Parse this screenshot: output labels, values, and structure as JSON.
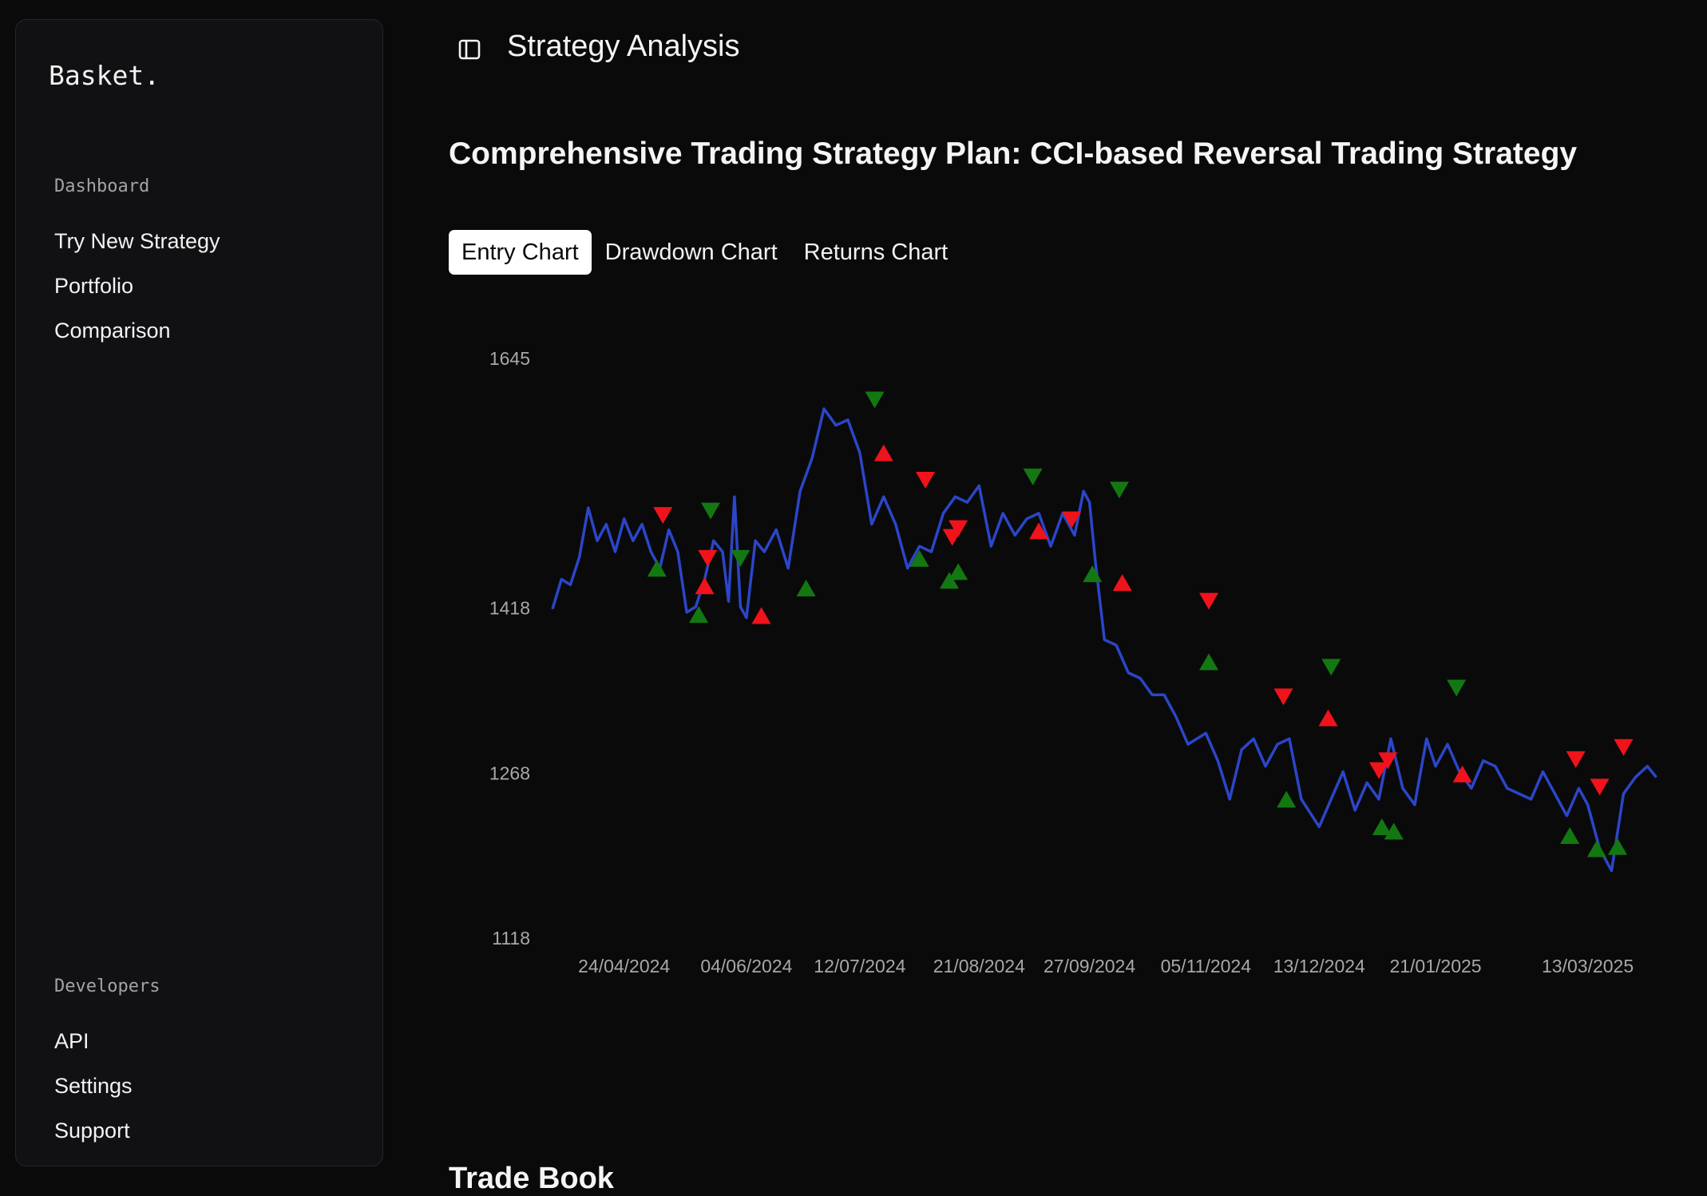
{
  "sidebar": {
    "logo": "Basket.",
    "section_dashboard": "Dashboard",
    "dashboard_items": [
      {
        "label": "Try New Strategy"
      },
      {
        "label": "Portfolio"
      },
      {
        "label": "Comparison"
      }
    ],
    "section_developers": "Developers",
    "developer_items": [
      {
        "label": "API"
      },
      {
        "label": "Settings"
      },
      {
        "label": "Support"
      }
    ]
  },
  "header": {
    "toggle_icon": "sidebar-toggle-icon",
    "title": "Strategy Analysis"
  },
  "main": {
    "heading": "Comprehensive Trading Strategy Plan: CCI-based Reversal Trading Strategy",
    "tabs": [
      {
        "label": "Entry Chart",
        "active": true
      },
      {
        "label": "Drawdown Chart",
        "active": false
      },
      {
        "label": "Returns Chart",
        "active": false
      }
    ],
    "next_section_title": "Trade Book"
  },
  "colors": {
    "line": "#2b46c9",
    "buy": "#137812",
    "sell": "#f0131c",
    "tick_text": "#a8a8a8"
  },
  "chart_data": {
    "type": "line",
    "y_ticks": [
      1645,
      1418,
      1268,
      1118
    ],
    "x_tick_labels": [
      "24/04/2024",
      "04/06/2024",
      "12/07/2024",
      "21/08/2024",
      "27/09/2024",
      "05/11/2024",
      "13/12/2024",
      "21/01/2025",
      "13/03/2025"
    ],
    "x_ticks": [
      "2024-04-24",
      "2024-06-04",
      "2024-07-12",
      "2024-08-21",
      "2024-09-27",
      "2024-11-05",
      "2024-12-13",
      "2025-01-21",
      "2025-03-13"
    ],
    "x_range": [
      "2024-03-31",
      "2025-04-07"
    ],
    "ylim": [
      1118,
      1645
    ],
    "series": [
      {
        "x": [
          "2024-03-31",
          "2024-04-03",
          "2024-04-06",
          "2024-04-09",
          "2024-04-12",
          "2024-04-15",
          "2024-04-18",
          "2024-04-21",
          "2024-04-24",
          "2024-04-27",
          "2024-04-30",
          "2024-05-03",
          "2024-05-06",
          "2024-05-09",
          "2024-05-12",
          "2024-05-15",
          "2024-05-18",
          "2024-05-21",
          "2024-05-24",
          "2024-05-27",
          "2024-05-29",
          "2024-05-31",
          "2024-06-02",
          "2024-06-04",
          "2024-06-07",
          "2024-06-10",
          "2024-06-14",
          "2024-06-18",
          "2024-06-22",
          "2024-06-26",
          "2024-06-30",
          "2024-07-04",
          "2024-07-08",
          "2024-07-12",
          "2024-07-16",
          "2024-07-20",
          "2024-07-24",
          "2024-07-28",
          "2024-08-01",
          "2024-08-05",
          "2024-08-09",
          "2024-08-13",
          "2024-08-17",
          "2024-08-21",
          "2024-08-25",
          "2024-08-29",
          "2024-09-02",
          "2024-09-06",
          "2024-09-10",
          "2024-09-14",
          "2024-09-18",
          "2024-09-22",
          "2024-09-25",
          "2024-09-27",
          "2024-09-29",
          "2024-10-02",
          "2024-10-06",
          "2024-10-10",
          "2024-10-14",
          "2024-10-18",
          "2024-10-22",
          "2024-10-26",
          "2024-10-30",
          "2024-11-05",
          "2024-11-09",
          "2024-11-13",
          "2024-11-17",
          "2024-11-21",
          "2024-11-25",
          "2024-11-29",
          "2024-12-03",
          "2024-12-07",
          "2024-12-13",
          "2024-12-17",
          "2024-12-21",
          "2024-12-25",
          "2024-12-29",
          "2025-01-02",
          "2025-01-06",
          "2025-01-10",
          "2025-01-14",
          "2025-01-18",
          "2025-01-21",
          "2025-01-25",
          "2025-01-29",
          "2025-02-02",
          "2025-02-06",
          "2025-02-10",
          "2025-02-14",
          "2025-02-18",
          "2025-02-22",
          "2025-02-26",
          "2025-03-02",
          "2025-03-06",
          "2025-03-10",
          "2025-03-13",
          "2025-03-17",
          "2025-03-21",
          "2025-03-25",
          "2025-03-29",
          "2025-04-02",
          "2025-04-05"
        ],
        "y": [
          1418,
          1445,
          1440,
          1465,
          1510,
          1480,
          1495,
          1470,
          1500,
          1480,
          1495,
          1470,
          1455,
          1490,
          1470,
          1415,
          1420,
          1445,
          1480,
          1470,
          1425,
          1520,
          1420,
          1410,
          1480,
          1470,
          1490,
          1455,
          1525,
          1555,
          1600,
          1585,
          1590,
          1560,
          1495,
          1520,
          1495,
          1455,
          1475,
          1470,
          1505,
          1520,
          1515,
          1530,
          1475,
          1505,
          1485,
          1500,
          1505,
          1475,
          1505,
          1485,
          1525,
          1515,
          1460,
          1390,
          1385,
          1360,
          1355,
          1340,
          1340,
          1320,
          1295,
          1305,
          1280,
          1245,
          1290,
          1300,
          1275,
          1295,
          1300,
          1245,
          1220,
          1245,
          1270,
          1235,
          1260,
          1245,
          1300,
          1255,
          1240,
          1300,
          1275,
          1295,
          1270,
          1255,
          1280,
          1275,
          1255,
          1250,
          1245,
          1270,
          1250,
          1230,
          1255,
          1240,
          1200,
          1180,
          1250,
          1265,
          1275,
          1265
        ]
      }
    ],
    "markers": {
      "buy_up": [
        {
          "x": "2024-05-05",
          "y": 1455
        },
        {
          "x": "2024-05-19",
          "y": 1413
        },
        {
          "x": "2024-06-24",
          "y": 1437
        },
        {
          "x": "2024-08-01",
          "y": 1464
        },
        {
          "x": "2024-08-11",
          "y": 1444
        },
        {
          "x": "2024-08-14",
          "y": 1452
        },
        {
          "x": "2024-09-28",
          "y": 1450
        },
        {
          "x": "2024-11-06",
          "y": 1370
        },
        {
          "x": "2024-12-02",
          "y": 1245
        },
        {
          "x": "2025-01-03",
          "y": 1220
        },
        {
          "x": "2025-01-07",
          "y": 1216
        },
        {
          "x": "2025-03-07",
          "y": 1212
        },
        {
          "x": "2025-03-16",
          "y": 1200
        },
        {
          "x": "2025-03-23",
          "y": 1202
        }
      ],
      "buy_down": [
        {
          "x": "2024-05-23",
          "y": 1507
        },
        {
          "x": "2024-06-02",
          "y": 1464
        },
        {
          "x": "2024-07-17",
          "y": 1608
        },
        {
          "x": "2024-09-08",
          "y": 1538
        },
        {
          "x": "2024-10-07",
          "y": 1526
        },
        {
          "x": "2024-12-17",
          "y": 1365
        },
        {
          "x": "2025-01-28",
          "y": 1346
        }
      ],
      "sell_up": [
        {
          "x": "2024-05-21",
          "y": 1439
        },
        {
          "x": "2024-06-09",
          "y": 1412
        },
        {
          "x": "2024-07-20",
          "y": 1560
        },
        {
          "x": "2024-09-10",
          "y": 1489
        },
        {
          "x": "2024-10-08",
          "y": 1442
        },
        {
          "x": "2024-12-16",
          "y": 1319
        },
        {
          "x": "2025-01-30",
          "y": 1268
        }
      ],
      "sell_down": [
        {
          "x": "2024-05-07",
          "y": 1503
        },
        {
          "x": "2024-05-22",
          "y": 1464
        },
        {
          "x": "2024-08-03",
          "y": 1535
        },
        {
          "x": "2024-08-12",
          "y": 1483
        },
        {
          "x": "2024-08-14",
          "y": 1491
        },
        {
          "x": "2024-09-21",
          "y": 1499
        },
        {
          "x": "2024-11-06",
          "y": 1425
        },
        {
          "x": "2024-12-01",
          "y": 1338
        },
        {
          "x": "2025-01-02",
          "y": 1271
        },
        {
          "x": "2025-01-05",
          "y": 1280
        },
        {
          "x": "2025-03-09",
          "y": 1281
        },
        {
          "x": "2025-03-17",
          "y": 1256
        },
        {
          "x": "2025-03-25",
          "y": 1292
        }
      ]
    }
  }
}
